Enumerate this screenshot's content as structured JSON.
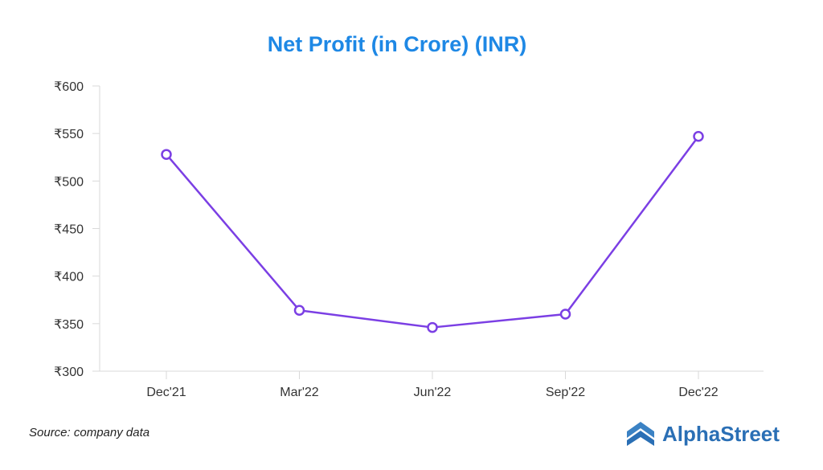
{
  "chart_data": {
    "type": "line",
    "title": "Net Profit (in Crore) (INR)",
    "categories": [
      "Dec'21",
      "Mar'22",
      "Jun'22",
      "Sep'22",
      "Dec'22"
    ],
    "series": [
      {
        "values": [
          528,
          364,
          346,
          360,
          547
        ]
      }
    ],
    "y_tick_labels": [
      "₹300",
      "₹350",
      "₹400",
      "₹450",
      "₹500",
      "₹550",
      "₹600"
    ],
    "y_ticks": [
      300,
      350,
      400,
      450,
      500,
      550,
      600
    ],
    "ylim": [
      300,
      600
    ],
    "grid": false,
    "line_color": "#7b3fe4",
    "marker": "hollow-circle"
  },
  "footer": {
    "source": "Source: company data",
    "brand": "AlphaStreet"
  },
  "colors": {
    "title": "#1e88e5",
    "axis": "#d9d9d9",
    "brand": "#2a6fb5",
    "brand_icon": "#3b82c4"
  }
}
